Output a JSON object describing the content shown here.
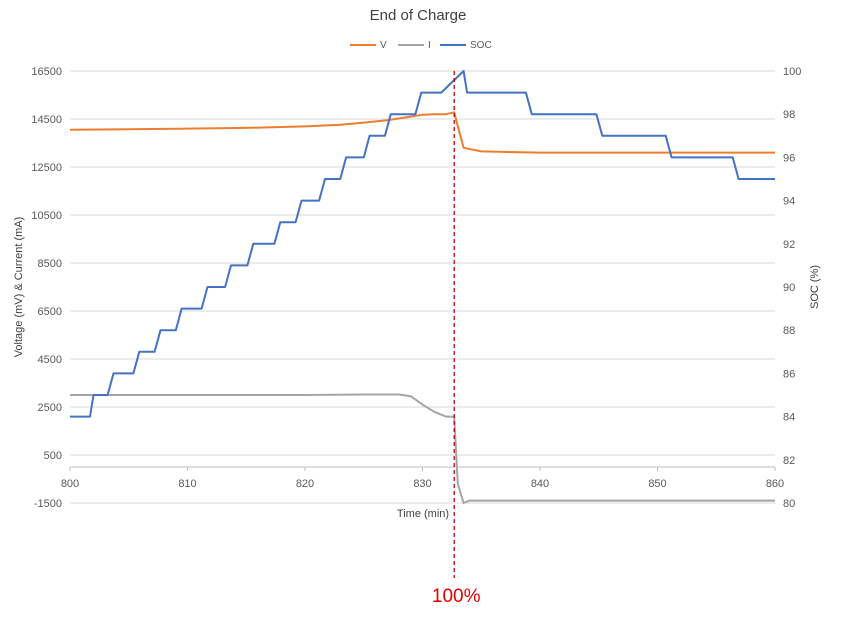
{
  "chart_data": {
    "type": "line",
    "title": "End of Charge",
    "xlabel": "Time (min)",
    "ylabel_left": "Voltage (mV) & Current (mA)",
    "ylabel_right": "SOC (%)",
    "xlim": [
      800,
      860
    ],
    "ylim_left": [
      -1500,
      16500
    ],
    "ylim_right": [
      80,
      100
    ],
    "x_ticks": [
      "800",
      "810",
      "820",
      "830",
      "840",
      "850",
      "860"
    ],
    "y_left_ticks": [
      "16500",
      "14500",
      "12500",
      "10500",
      "8500",
      "6500",
      "4500",
      "2500",
      "500",
      "-1500"
    ],
    "y_right_ticks": [
      "100",
      "98",
      "96",
      "94",
      "92",
      "90",
      "88",
      "86",
      "84",
      "82",
      "80"
    ],
    "grid": true,
    "legend_position": "top",
    "series": [
      {
        "name": "V",
        "axis": "left",
        "color": "#ED7D31",
        "x": [
          800,
          805,
          810,
          815,
          820,
          823,
          825,
          827,
          829,
          830,
          831,
          832,
          832.7,
          833,
          833.5,
          835,
          840,
          845,
          850,
          855,
          860
        ],
        "y": [
          14050,
          14070,
          14100,
          14130,
          14190,
          14260,
          14350,
          14450,
          14600,
          14680,
          14700,
          14700,
          14780,
          14200,
          13300,
          13150,
          13100,
          13100,
          13100,
          13100,
          13100
        ]
      },
      {
        "name": "I",
        "axis": "left",
        "color": "#A5A5A5",
        "x": [
          800,
          805,
          810,
          815,
          820,
          825,
          828,
          829,
          830,
          831,
          832,
          832.7,
          833,
          833.5,
          834,
          840,
          845,
          850,
          855,
          860
        ],
        "y": [
          3000,
          3000,
          3000,
          3000,
          3000,
          3020,
          3020,
          2950,
          2600,
          2300,
          2100,
          2100,
          -700,
          -1500,
          -1400,
          -1400,
          -1400,
          -1400,
          -1400,
          -1400
        ]
      },
      {
        "name": "SOC",
        "axis": "right",
        "color": "#4472C4",
        "x": [
          800,
          801.7,
          802,
          803.2,
          803.7,
          805.4,
          805.9,
          807.2,
          807.7,
          809,
          809.5,
          811.2,
          811.7,
          813.2,
          813.7,
          815.1,
          815.6,
          817.4,
          817.9,
          819.2,
          819.7,
          821.2,
          821.7,
          823,
          823.5,
          825,
          825.5,
          826.8,
          827.3,
          829.4,
          829.9,
          831.2,
          831.6,
          833.5,
          833.8,
          838.8,
          839.3,
          844.8,
          845.3,
          850.7,
          851.2,
          856.4,
          856.9,
          860
        ],
        "y": [
          84,
          84,
          85,
          85,
          86,
          86,
          87,
          87,
          88,
          88,
          89,
          89,
          90,
          90,
          91,
          91,
          92,
          92,
          93,
          93,
          94,
          94,
          95,
          95,
          96,
          96,
          97,
          97,
          98,
          98,
          99,
          99,
          99,
          100,
          99,
          99,
          98,
          98,
          97,
          97,
          96,
          96,
          95,
          95
        ]
      }
    ],
    "annotations": [
      {
        "x": 832.7,
        "text": "100%",
        "color": "#C00000"
      }
    ]
  }
}
